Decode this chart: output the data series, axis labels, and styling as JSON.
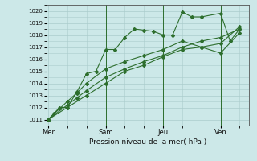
{
  "xlabel": "Pression niveau de la mer( hPa )",
  "background_color": "#cce8e8",
  "grid_color": "#aacccc",
  "line_color": "#2d6e2d",
  "ylim": [
    1010.5,
    1020.5
  ],
  "yticks": [
    1011,
    1012,
    1013,
    1014,
    1015,
    1016,
    1017,
    1018,
    1019,
    1020
  ],
  "day_labels": [
    "Mer",
    "Sam",
    "Jeu",
    "Ven"
  ],
  "day_positions": [
    0,
    3,
    6,
    9
  ],
  "xlim": [
    -0.1,
    10.5
  ],
  "vline_positions": [
    3.0,
    6.0,
    9.0
  ],
  "series1_x": [
    0,
    0.3,
    0.6,
    1.0,
    1.5,
    2.0,
    2.5,
    3.0,
    3.5,
    4.0,
    4.5,
    5.0,
    5.5,
    6.0,
    6.5,
    7.0,
    7.5,
    8.0,
    9.0,
    9.5,
    10.0
  ],
  "series1_y": [
    1011.0,
    1011.5,
    1012.0,
    1012.0,
    1013.3,
    1014.8,
    1015.0,
    1016.8,
    1016.8,
    1017.8,
    1018.5,
    1018.4,
    1018.3,
    1018.0,
    1018.0,
    1019.9,
    1019.5,
    1019.5,
    1019.8,
    1017.5,
    1018.5
  ],
  "series2_x": [
    0,
    1.0,
    1.5,
    2.0,
    3.0,
    4.0,
    5.0,
    6.0,
    7.0,
    8.0,
    9.0,
    10.0
  ],
  "series2_y": [
    1011.0,
    1012.2,
    1012.8,
    1013.4,
    1014.5,
    1015.2,
    1015.8,
    1016.3,
    1017.0,
    1017.5,
    1017.8,
    1018.5
  ],
  "series3_x": [
    0,
    1.0,
    1.5,
    2.0,
    3.0,
    4.0,
    5.0,
    6.0,
    7.0,
    8.0,
    9.0,
    10.0
  ],
  "series3_y": [
    1011.0,
    1012.5,
    1013.2,
    1014.0,
    1015.2,
    1015.8,
    1016.3,
    1016.8,
    1017.5,
    1017.0,
    1016.5,
    1018.2
  ],
  "series4_x": [
    0,
    1.0,
    2.0,
    3.0,
    4.0,
    5.0,
    6.0,
    7.0,
    8.0,
    9.0,
    10.0
  ],
  "series4_y": [
    1011.0,
    1012.0,
    1013.0,
    1014.0,
    1015.0,
    1015.5,
    1016.2,
    1016.8,
    1017.0,
    1017.3,
    1018.7
  ]
}
